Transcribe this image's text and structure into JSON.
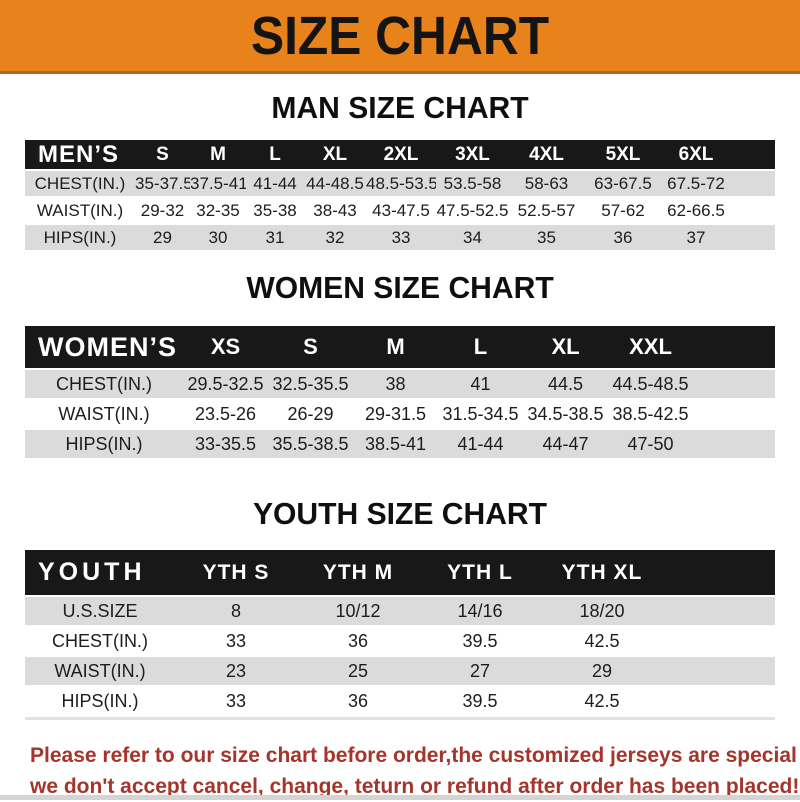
{
  "banner": {
    "title": "SIZE CHART"
  },
  "colors": {
    "banner_orange": "#E8831C",
    "header_black": "#181818",
    "row_gray": "#DBDBDB",
    "warning_red": "#A5342B"
  },
  "sections": [
    {
      "title": "MAN SIZE CHART",
      "header_label": "MEN’S",
      "columns": [
        "S",
        "M",
        "L",
        "XL",
        "2XL",
        "3XL",
        "4XL",
        "5XL",
        "6XL"
      ],
      "rows": [
        {
          "label": "CHEST(IN.)",
          "values": [
            "35-37.5",
            "37.5-41",
            "41-44",
            "44-48.5",
            "48.5-53.5",
            "53.5-58",
            "58-63",
            "63-67.5",
            "67.5-72"
          ]
        },
        {
          "label": "WAIST(IN.)",
          "values": [
            "29-32",
            "32-35",
            "35-38",
            "38-43",
            "43-47.5",
            "47.5-52.5",
            "52.5-57",
            "57-62",
            "62-66.5"
          ]
        },
        {
          "label": "HIPS(IN.)",
          "values": [
            "29",
            "30",
            "31",
            "32",
            "33",
            "34",
            "35",
            "36",
            "37"
          ]
        }
      ]
    },
    {
      "title": "WOMEN SIZE CHART",
      "header_label": "WOMEN’S",
      "columns": [
        "XS",
        "S",
        "M",
        "L",
        "XL",
        "XXL"
      ],
      "rows": [
        {
          "label": "CHEST(IN.)",
          "values": [
            "29.5-32.5",
            "32.5-35.5",
            "38",
            "41",
            "44.5",
            "44.5-48.5"
          ]
        },
        {
          "label": "WAIST(IN.)",
          "values": [
            "23.5-26",
            "26-29",
            "29-31.5",
            "31.5-34.5",
            "34.5-38.5",
            "38.5-42.5"
          ]
        },
        {
          "label": "HIPS(IN.)",
          "values": [
            "33-35.5",
            "35.5-38.5",
            "38.5-41",
            "41-44",
            "44-47",
            "47-50"
          ]
        }
      ]
    },
    {
      "title": "YOUTH SIZE CHART",
      "header_label": "YOUTH",
      "columns": [
        "YTH S",
        "YTH M",
        "YTH L",
        "YTH XL"
      ],
      "rows": [
        {
          "label": "U.S.SIZE",
          "values": [
            "8",
            "10/12",
            "14/16",
            "18/20"
          ]
        },
        {
          "label": "CHEST(IN.)",
          "values": [
            "33",
            "36",
            "39.5",
            "42.5"
          ]
        },
        {
          "label": "WAIST(IN.)",
          "values": [
            "23",
            "25",
            "27",
            "29"
          ]
        },
        {
          "label": "HIPS(IN.)",
          "values": [
            "33",
            "36",
            "39.5",
            "42.5"
          ]
        }
      ]
    }
  ],
  "footer": {
    "line1": "Please refer to our size chart before order,the customized jerseys are special products,",
    "line2": "we don't accept cancel, change, teturn or refund after order has been placed!"
  }
}
